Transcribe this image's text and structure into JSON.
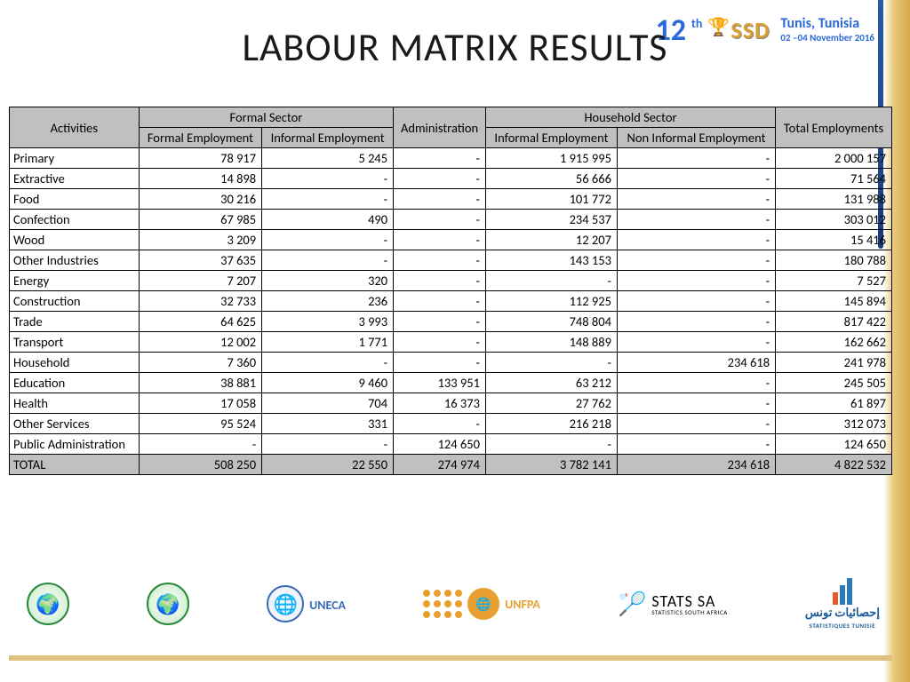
{
  "title": "LABOUR MATRIX RESULTS",
  "banner": {
    "num": "12",
    "th": "th",
    "ssd": "SSD",
    "location": "Tunis, Tunisia",
    "dates": "02 –04 November 2016"
  },
  "table": {
    "header": {
      "activities": "Activities",
      "formal_sector": "Formal Sector",
      "formal_emp": "Formal Employment",
      "informal_emp": "Informal Employment",
      "administration": "Administration",
      "household_sector": "Household Sector",
      "hh_informal": "Informal Employment",
      "hh_noninformal": "Non Informal Employment",
      "total": "Total Employments"
    },
    "rows": [
      {
        "a": "Primary",
        "c1": "78 917",
        "c2": "5 245",
        "c3": "-",
        "c4": "1 915 995",
        "c5": "-",
        "c6": "2 000 157"
      },
      {
        "a": "Extractive",
        "c1": "14 898",
        "c2": "-",
        "c3": "-",
        "c4": "56 666",
        "c5": "-",
        "c6": "71 564"
      },
      {
        "a": "Food",
        "c1": "30 216",
        "c2": "-",
        "c3": "-",
        "c4": "101 772",
        "c5": "-",
        "c6": "131 988"
      },
      {
        "a": "Confection",
        "c1": "67 985",
        "c2": "490",
        "c3": "-",
        "c4": "234 537",
        "c5": "-",
        "c6": "303 012"
      },
      {
        "a": "Wood",
        "c1": "3 209",
        "c2": "-",
        "c3": "-",
        "c4": "12 207",
        "c5": "-",
        "c6": "15 416"
      },
      {
        "a": "Other Industries",
        "c1": "37 635",
        "c2": "-",
        "c3": "-",
        "c4": "143 153",
        "c5": "-",
        "c6": "180 788"
      },
      {
        "a": "Energy",
        "c1": "7 207",
        "c2": "320",
        "c3": "-",
        "c4": "-",
        "c5": "-",
        "c6": "7 527"
      },
      {
        "a": "Construction",
        "c1": "32 733",
        "c2": "236",
        "c3": "-",
        "c4": "112 925",
        "c5": "-",
        "c6": "145 894"
      },
      {
        "a": "Trade",
        "c1": "64 625",
        "c2": "3 993",
        "c3": "-",
        "c4": "748 804",
        "c5": "-",
        "c6": "817 422"
      },
      {
        "a": "Transport",
        "c1": "12 002",
        "c2": "1 771",
        "c3": "-",
        "c4": "148 889",
        "c5": "-",
        "c6": "162 662"
      },
      {
        "a": "Household",
        "c1": "7 360",
        "c2": "-",
        "c3": "-",
        "c4": "-",
        "c5": "234 618",
        "c6": "241 978"
      },
      {
        "a": "Education",
        "c1": "38 881",
        "c2": "9 460",
        "c3": "133 951",
        "c4": "63 212",
        "c5": "-",
        "c6": "245 505"
      },
      {
        "a": "Health",
        "c1": "17 058",
        "c2": "704",
        "c3": "16 373",
        "c4": "27 762",
        "c5": "-",
        "c6": "61 897"
      },
      {
        "a": "Other Services",
        "c1": "95 524",
        "c2": "331",
        "c3": "-",
        "c4": "216 218",
        "c5": "-",
        "c6": "312 073"
      },
      {
        "a": "Public Administration",
        "c1": "-",
        "c2": "-",
        "c3": "124 650",
        "c4": "-",
        "c5": "-",
        "c6": "124 650"
      }
    ],
    "total": {
      "a": "TOTAL",
      "c1": "508 250",
      "c2": "22 550",
      "c3": "274 974",
      "c4": "3 782 141",
      "c5": "234 618",
      "c6": "4 822 532"
    }
  },
  "logos": {
    "au": "African Union",
    "afdb": "African Development Bank",
    "uneca": "UNECA",
    "unfpa": "UNFPA",
    "stats_sa": "STATS SA",
    "stats_sa_sub": "STATISTICS SOUTH AFRICA",
    "tunisie_ar": "إحصائيات تونس",
    "tunisie": "STATISTIQUES TUNISIE"
  },
  "colors": {
    "header_bg": "#c0c0c0",
    "border": "#000000",
    "accent_blue": "#2a6ad8",
    "accent_gold": "#d4a84a"
  }
}
